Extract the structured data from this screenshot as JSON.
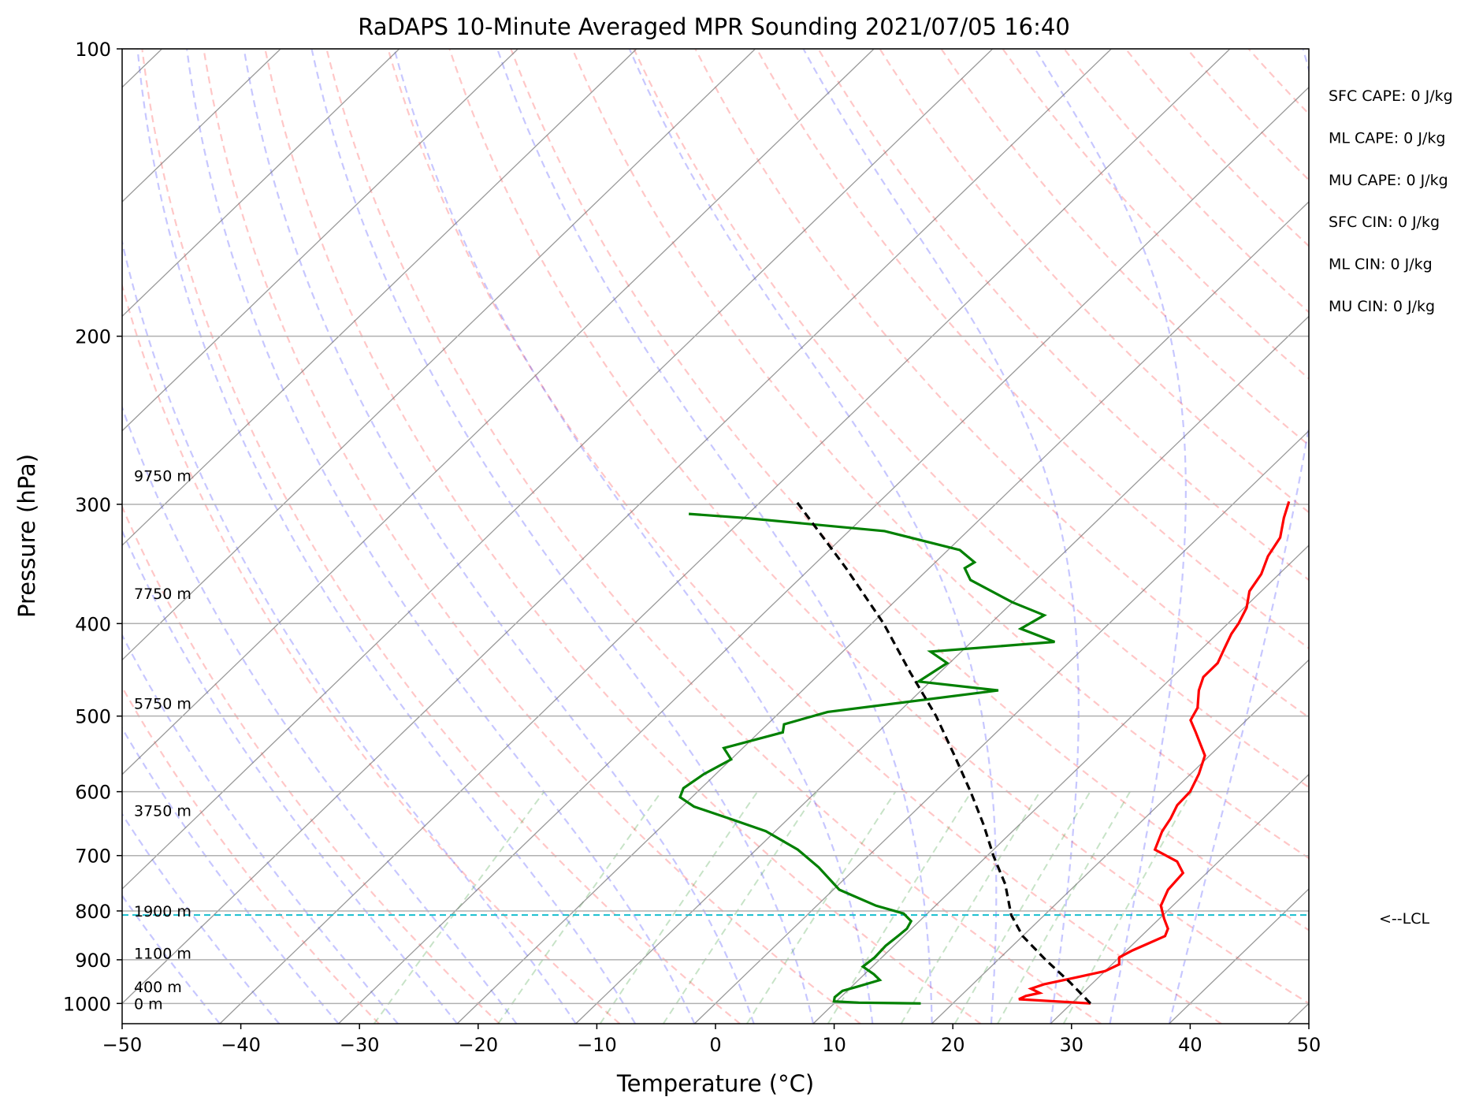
{
  "chart_data": {
    "type": "skew-t",
    "title": "RaDAPS 10-Minute Averaged MPR Sounding 2021/07/05 16:40",
    "xlabel": "Temperature (°C)",
    "ylabel": "Pressure (hPa)",
    "xlim": [
      -50,
      50
    ],
    "ylim_hpa": [
      1050,
      100
    ],
    "log_pressure": true,
    "grid": true,
    "x_ticks": [
      "−50",
      "−40",
      "−30",
      "−20",
      "−10",
      "0",
      "10",
      "20",
      "30",
      "40",
      "50"
    ],
    "x_tick_values": [
      -50,
      -40,
      -30,
      -20,
      -10,
      0,
      10,
      20,
      30,
      40,
      50
    ],
    "y_ticks": [
      "100",
      "200",
      "300",
      "400",
      "500",
      "600",
      "700",
      "800",
      "900",
      "1000"
    ],
    "y_tick_values": [
      100,
      200,
      300,
      400,
      500,
      600,
      700,
      800,
      900,
      1000
    ],
    "height_labels": [
      {
        "text": "9750 m",
        "p": 280
      },
      {
        "text": "7750 m",
        "p": 372
      },
      {
        "text": "5750 m",
        "p": 485
      },
      {
        "text": "3750 m",
        "p": 628
      },
      {
        "text": "1900 m",
        "p": 800
      },
      {
        "text": "1100 m",
        "p": 886
      },
      {
        "text": "400 m",
        "p": 960
      },
      {
        "text": "0 m",
        "p": 1000
      }
    ],
    "indices": [
      "SFC CAPE: 0 J/kg",
      "ML CAPE: 0 J/kg",
      "MU CAPE: 0 J/kg",
      "SFC CIN: 0 J/kg",
      "ML CIN: 0 J/kg",
      "MU CIN: 0 J/kg"
    ],
    "lcl": {
      "label": "<--LCL",
      "p": 808
    },
    "series": [
      {
        "color": "#ff0000",
        "kind": "temperature",
        "points": [
          [
            1000,
            31.6
          ],
          [
            995,
            28.5
          ],
          [
            990,
            25.2
          ],
          [
            982,
            25.5
          ],
          [
            975,
            26.4
          ],
          [
            965,
            25.3
          ],
          [
            955,
            26.0
          ],
          [
            940,
            28.0
          ],
          [
            925,
            30.0
          ],
          [
            910,
            30.6
          ],
          [
            895,
            30.0
          ],
          [
            880,
            30.5
          ],
          [
            866,
            31.2
          ],
          [
            850,
            32.0
          ],
          [
            835,
            31.6
          ],
          [
            815,
            30.4
          ],
          [
            790,
            29.0
          ],
          [
            760,
            28.2
          ],
          [
            730,
            28.0
          ],
          [
            710,
            26.5
          ],
          [
            690,
            23.6
          ],
          [
            660,
            22.6
          ],
          [
            640,
            22.2
          ],
          [
            620,
            21.6
          ],
          [
            600,
            21.5
          ],
          [
            575,
            20.7
          ],
          [
            550,
            19.6
          ],
          [
            520,
            16.8
          ],
          [
            505,
            15.3
          ],
          [
            490,
            14.8
          ],
          [
            470,
            13.4
          ],
          [
            455,
            12.6
          ],
          [
            440,
            12.6
          ],
          [
            425,
            11.9
          ],
          [
            410,
            11.2
          ],
          [
            400,
            10.9
          ],
          [
            385,
            10.2
          ],
          [
            370,
            9.0
          ],
          [
            355,
            8.5
          ],
          [
            340,
            7.5
          ],
          [
            325,
            6.9
          ],
          [
            310,
            5.5
          ],
          [
            298,
            4.5
          ]
        ]
      },
      {
        "color": "#008000",
        "kind": "dewpoint",
        "points": [
          [
            1000,
            17.3
          ],
          [
            998,
            12.0
          ],
          [
            995,
            9.8
          ],
          [
            985,
            9.5
          ],
          [
            970,
            9.6
          ],
          [
            960,
            10.5
          ],
          [
            945,
            11.8
          ],
          [
            932,
            10.8
          ],
          [
            915,
            9.2
          ],
          [
            895,
            9.4
          ],
          [
            870,
            9.3
          ],
          [
            848,
            9.5
          ],
          [
            835,
            9.6
          ],
          [
            820,
            9.3
          ],
          [
            805,
            8.0
          ],
          [
            790,
            5.0
          ],
          [
            760,
            0.5
          ],
          [
            720,
            -3.2
          ],
          [
            690,
            -6.5
          ],
          [
            660,
            -10.8
          ],
          [
            640,
            -15.0
          ],
          [
            622,
            -19.0
          ],
          [
            608,
            -21.0
          ],
          [
            595,
            -21.5
          ],
          [
            575,
            -21.0
          ],
          [
            555,
            -20.0
          ],
          [
            540,
            -21.6
          ],
          [
            520,
            -18.0
          ],
          [
            510,
            -18.6
          ],
          [
            495,
            -16.0
          ],
          [
            470,
            -3.5
          ],
          [
            460,
            -11.0
          ],
          [
            440,
            -10.2
          ],
          [
            428,
            -12.6
          ],
          [
            418,
            -3.0
          ],
          [
            405,
            -7.0
          ],
          [
            392,
            -6.2
          ],
          [
            380,
            -10.0
          ],
          [
            360,
            -15.5
          ],
          [
            350,
            -17.0
          ],
          [
            345,
            -16.7
          ],
          [
            335,
            -19.0
          ],
          [
            320,
            -27.0
          ],
          [
            310,
            -40.0
          ],
          [
            307,
            -45.0
          ]
        ]
      },
      {
        "color": "#000000",
        "kind": "parcel",
        "dashed": true,
        "points": [
          [
            1000,
            31.6
          ],
          [
            950,
            28.0
          ],
          [
            900,
            24.0
          ],
          [
            850,
            20.0
          ],
          [
            808,
            17.2
          ],
          [
            750,
            14.0
          ],
          [
            700,
            10.5
          ],
          [
            650,
            7.0
          ],
          [
            600,
            3.0
          ],
          [
            550,
            -1.5
          ],
          [
            500,
            -6.5
          ],
          [
            450,
            -12.5
          ],
          [
            400,
            -19.0
          ],
          [
            350,
            -27.0
          ],
          [
            298,
            -37.0
          ]
        ]
      }
    ]
  }
}
